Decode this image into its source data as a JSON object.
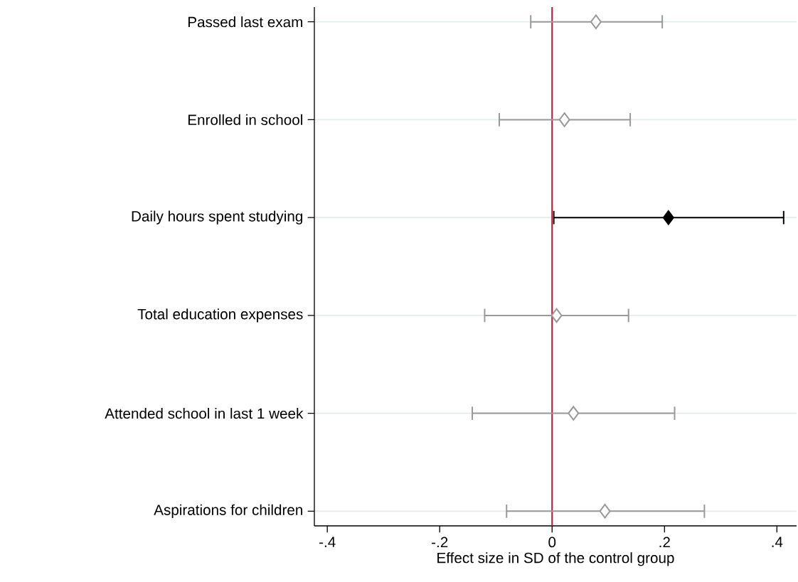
{
  "chart_data": {
    "type": "scatter",
    "orientation": "horizontal",
    "xlabel": "Effect size in SD of the control group",
    "categories": [
      "Passed last exam",
      "Enrolled in school",
      "Daily hours spent studying",
      "Total education expenses",
      "Attended school in last 1 week",
      "Aspirations for children"
    ],
    "series": [
      {
        "color": "#999999",
        "values": [
          0.078,
          0.022,
          null,
          0.008,
          0.038,
          0.094
        ],
        "errors": [
          [
            -0.038,
            0.196
          ],
          [
            -0.094,
            0.139
          ],
          null,
          [
            -0.12,
            0.136
          ],
          [
            -0.142,
            0.218
          ],
          [
            -0.081,
            0.271
          ]
        ]
      },
      {
        "color": "#000000",
        "values": [
          null,
          null,
          0.207,
          null,
          null,
          null
        ],
        "errors": [
          null,
          null,
          [
            0.003,
            0.412
          ],
          null,
          null,
          null
        ]
      }
    ],
    "xlim": [
      -0.423,
      0.435
    ],
    "xticks": [
      {
        "value": -0.4,
        "label": "-.4"
      },
      {
        "value": -0.2,
        "label": "-.2"
      },
      0,
      {
        "value": 0.2,
        "label": ".2"
      },
      {
        "value": 0.4,
        "label": ".4"
      }
    ],
    "ref_lines": [
      {
        "axis": "x",
        "value": 0,
        "color": "#c8102e"
      }
    ],
    "grid": "y",
    "marker": "diamond"
  }
}
